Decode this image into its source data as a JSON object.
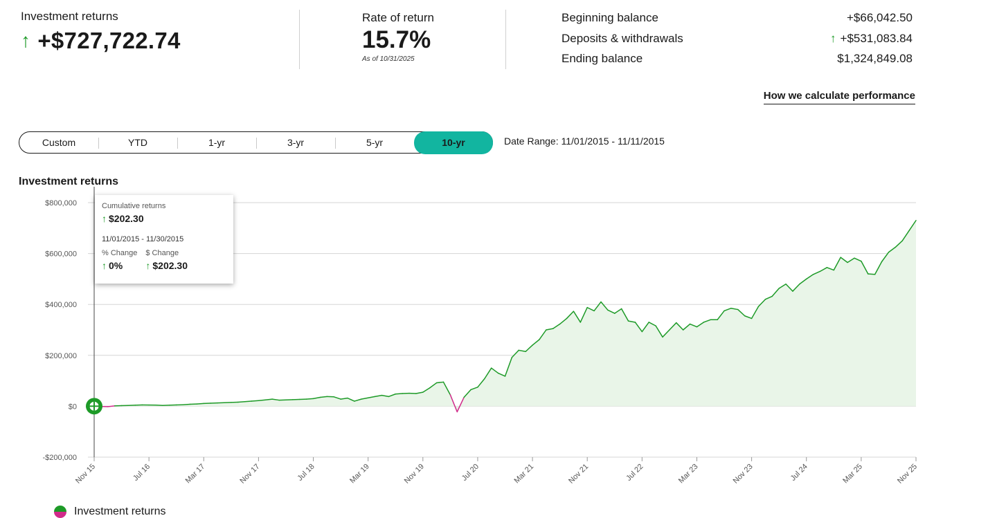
{
  "summary": {
    "label": "Investment returns",
    "value": "+$727,722.74",
    "arrow_icon": "arrow-up-icon"
  },
  "rate_of_return": {
    "label": "Rate of return",
    "value": "15.7%",
    "as_of": "As of 10/31/2025"
  },
  "balances": [
    {
      "label": "Beginning balance",
      "value": "+$66,042.50",
      "up": false
    },
    {
      "label": "Deposits & withdrawals",
      "value": "+$531,083.84",
      "up": true
    },
    {
      "label": "Ending balance",
      "value": "$1,324,849.08",
      "up": false
    }
  ],
  "how_link": "How we calculate performance",
  "ranges": [
    {
      "label": "Custom",
      "active": false
    },
    {
      "label": "YTD",
      "active": false
    },
    {
      "label": "1-yr",
      "active": false
    },
    {
      "label": "3-yr",
      "active": false
    },
    {
      "label": "5-yr",
      "active": false
    },
    {
      "label": "10-yr",
      "active": true
    }
  ],
  "date_range": "Date Range: 11/01/2015 - 11/11/2015",
  "tooltip": {
    "title": "Cumulative returns",
    "value": "$202.30",
    "dates": "11/01/2015 - 11/30/2015",
    "pct_label": "% Change",
    "pct_value": "0%",
    "dollar_label": "$ Change",
    "dollar_value": "$202.30"
  },
  "legend": {
    "label": "Investment returns"
  },
  "colors": {
    "positive": "#1d9a27",
    "negative": "#d12a8a",
    "fill": "#e9f5e8",
    "accent": "#12b5a0"
  },
  "chart_data": {
    "type": "area",
    "title": "Investment returns",
    "ylim": [
      -200000,
      800000
    ],
    "yticks": [
      -200000,
      0,
      200000,
      400000,
      600000,
      800000
    ],
    "ytick_labels": [
      "-$200,000",
      "$0",
      "$200,000",
      "$400,000",
      "$600,000",
      "$800,000"
    ],
    "xticks": [
      "Nov 15",
      "Jul 16",
      "Mar 17",
      "Nov 17",
      "Jul 18",
      "Mar 19",
      "Nov 19",
      "Jul 20",
      "Mar 21",
      "Nov 21",
      "Jul 22",
      "Mar 23",
      "Nov 23",
      "Jul 24",
      "Mar 25",
      "Nov 25"
    ],
    "x_months": [
      0,
      8,
      16,
      24,
      32,
      40,
      48,
      56,
      64,
      72,
      80,
      88,
      96,
      104,
      112,
      120
    ],
    "legend": "bottom-left",
    "grid": true,
    "series": [
      {
        "name": "Investment returns",
        "x": [
          0,
          1,
          2,
          3,
          4,
          5,
          6,
          7,
          8,
          9,
          10,
          11,
          12,
          13,
          14,
          15,
          16,
          17,
          18,
          19,
          20,
          21,
          22,
          23,
          24,
          25,
          26,
          27,
          28,
          29,
          30,
          31,
          32,
          33,
          34,
          35,
          36,
          37,
          38,
          39,
          40,
          41,
          42,
          43,
          44,
          45,
          46,
          47,
          48,
          49,
          50,
          51,
          52,
          53,
          54,
          55,
          56,
          57,
          58,
          59,
          60,
          61,
          62,
          63,
          64,
          65,
          66,
          67,
          68,
          69,
          70,
          71,
          72,
          73,
          74,
          75,
          76,
          77,
          78,
          79,
          80,
          81,
          82,
          83,
          84,
          85,
          86,
          87,
          88,
          89,
          90,
          91,
          92,
          93,
          94,
          95,
          96,
          97,
          98,
          99,
          100,
          101,
          102,
          103,
          104,
          105,
          106,
          107,
          108,
          109,
          110,
          111,
          112,
          113,
          114,
          115,
          116,
          117,
          118,
          119,
          120
        ],
        "y": [
          202,
          -800,
          -1500,
          1500,
          2500,
          3000,
          4000,
          5000,
          4800,
          4500,
          3000,
          4000,
          5000,
          6000,
          8000,
          9000,
          11000,
          12000,
          13000,
          14000,
          15000,
          16000,
          18000,
          20000,
          22000,
          25000,
          28000,
          24000,
          25000,
          26000,
          27000,
          28000,
          30000,
          35000,
          38000,
          37000,
          28000,
          32000,
          20000,
          28000,
          33000,
          38000,
          43000,
          38000,
          48000,
          50000,
          51000,
          50000,
          55000,
          72000,
          92000,
          95000,
          45000,
          -22000,
          35000,
          65000,
          75000,
          108000,
          150000,
          130000,
          118000,
          192000,
          220000,
          215000,
          240000,
          262000,
          300000,
          305000,
          323000,
          345000,
          373000,
          330000,
          388000,
          375000,
          410000,
          378000,
          365000,
          383000,
          335000,
          330000,
          293000,
          330000,
          316000,
          272000,
          300000,
          328000,
          300000,
          323000,
          312000,
          330000,
          340000,
          340000,
          375000,
          385000,
          380000,
          355000,
          345000,
          392000,
          420000,
          432000,
          463000,
          480000,
          452000,
          480000,
          500000,
          518000,
          530000,
          545000,
          535000,
          585000,
          565000,
          582000,
          570000,
          520000,
          518000,
          568000,
          605000,
          625000,
          650000,
          690000,
          730000
        ]
      }
    ]
  }
}
